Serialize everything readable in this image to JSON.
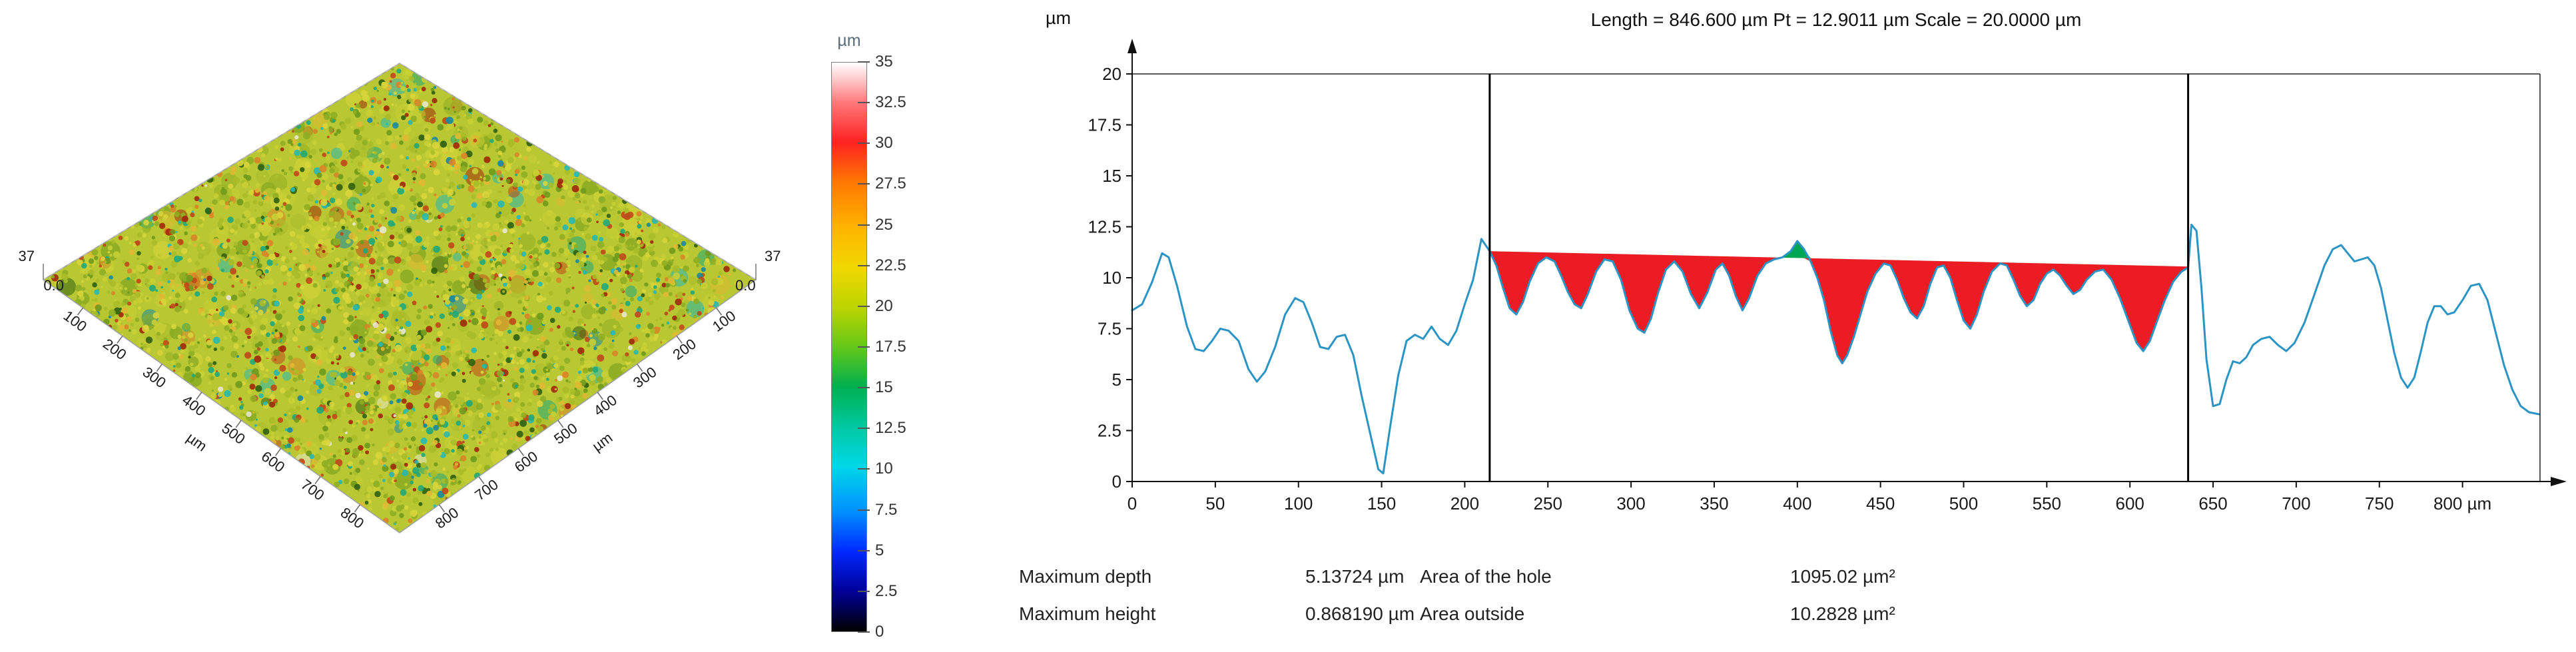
{
  "measurements": {
    "r1c1_label": "Maximum depth",
    "r1c1_value": "5.13724 µm",
    "r1c2_label": "Area of the hole",
    "r1c2_value": "1095.02 µm²",
    "r2c1_label": "Maximum height",
    "r2c1_value": "0.868190 µm",
    "r2c2_label": "Area outside",
    "r2c2_value": "10.2828 µm²"
  },
  "chart_data": [
    {
      "type": "heatmap",
      "name": "surface-3d-topography",
      "x_axis": {
        "unit": "µm",
        "tick_labels": [
          "100",
          "200",
          "300",
          "400",
          "500",
          "600",
          "700",
          "800"
        ]
      },
      "y_axis": {
        "unit": "µm",
        "tick_labels": [
          "100",
          "200",
          "300",
          "400",
          "500",
          "600",
          "700",
          "800"
        ]
      },
      "z_axis": {
        "unit": "µm",
        "max_label": "37",
        "min_label": "0.0"
      },
      "base_color": "#b9c832",
      "speckle_palette": [
        {
          "c": "#a8bc28",
          "w": 0.17
        },
        {
          "c": "#c9cf33",
          "w": 0.16
        },
        {
          "c": "#d9d53a",
          "w": 0.12
        },
        {
          "c": "#8fae22",
          "w": 0.12
        },
        {
          "c": "#6f9a1c",
          "w": 0.08
        },
        {
          "c": "#e0b832",
          "w": 0.06
        },
        {
          "c": "#d98428",
          "w": 0.05
        },
        {
          "c": "#c04818",
          "w": 0.05
        },
        {
          "c": "#a02808",
          "w": 0.04
        },
        {
          "c": "#20a87a",
          "w": 0.05
        },
        {
          "c": "#28b8b0",
          "w": 0.04
        },
        {
          "c": "#1888a0",
          "w": 0.02
        },
        {
          "c": "#306010",
          "w": 0.03
        },
        {
          "c": "#e8e8d0",
          "w": 0.01
        }
      ],
      "colormap": {
        "unit": "µm",
        "tick_labels": [
          "35",
          "32.5",
          "30",
          "27.5",
          "25",
          "22.5",
          "20",
          "17.5",
          "15",
          "12.5",
          "10",
          "7.5",
          "5",
          "2.5",
          "0"
        ],
        "stops": [
          {
            "pos": 0,
            "color": "#ffffff"
          },
          {
            "pos": 3,
            "color": "#ffc8c8"
          },
          {
            "pos": 7,
            "color": "#ff7878"
          },
          {
            "pos": 14,
            "color": "#ff2222"
          },
          {
            "pos": 21,
            "color": "#ff7800"
          },
          {
            "pos": 29,
            "color": "#ffb400"
          },
          {
            "pos": 36,
            "color": "#f0d800"
          },
          {
            "pos": 43,
            "color": "#bcd400"
          },
          {
            "pos": 50,
            "color": "#64c818"
          },
          {
            "pos": 57,
            "color": "#00b050"
          },
          {
            "pos": 64,
            "color": "#00c8a0"
          },
          {
            "pos": 71,
            "color": "#00d8e8"
          },
          {
            "pos": 79,
            "color": "#0090ff"
          },
          {
            "pos": 86,
            "color": "#0028ff"
          },
          {
            "pos": 93,
            "color": "#000098"
          },
          {
            "pos": 100,
            "color": "#000000"
          }
        ]
      }
    },
    {
      "type": "line",
      "name": "extracted-profile",
      "title": "Length = 846.600 µm  Pt = 12.9011 µm  Scale = 20.0000 µm",
      "y_unit": "µm",
      "ylim": [
        0,
        20
      ],
      "xlim": [
        0,
        860
      ],
      "profile_end_x": 846.6,
      "y_tick_labels": [
        "0",
        "2.5",
        "5",
        "7.5",
        "10",
        "12.5",
        "15",
        "17.5",
        "20"
      ],
      "x_tick_labels": [
        "0",
        "50",
        "100",
        "150",
        "200",
        "250",
        "300",
        "350",
        "400",
        "450",
        "500",
        "550",
        "600",
        "650",
        "700",
        "750",
        "800 µm"
      ],
      "line_color": "#2a94c5",
      "hole_fill": "#ec1c24",
      "peak_fill": "#00a651",
      "cursor_color": "#000000",
      "cursors": [
        215,
        635
      ],
      "hole": {
        "x": [
          215,
          635
        ],
        "y": [
          11.3,
          10.55
        ]
      },
      "points": [
        [
          0,
          8.4
        ],
        [
          6,
          8.7
        ],
        [
          12,
          9.8
        ],
        [
          18,
          11.2
        ],
        [
          22,
          11.0
        ],
        [
          27,
          9.6
        ],
        [
          33,
          7.6
        ],
        [
          38,
          6.5
        ],
        [
          43,
          6.4
        ],
        [
          48,
          6.9
        ],
        [
          53,
          7.5
        ],
        [
          58,
          7.4
        ],
        [
          64,
          6.9
        ],
        [
          70,
          5.5
        ],
        [
          75,
          4.9
        ],
        [
          80,
          5.4
        ],
        [
          86,
          6.6
        ],
        [
          92,
          8.2
        ],
        [
          98,
          9.0
        ],
        [
          103,
          8.8
        ],
        [
          108,
          7.8
        ],
        [
          113,
          6.6
        ],
        [
          118,
          6.5
        ],
        [
          123,
          7.1
        ],
        [
          128,
          7.2
        ],
        [
          133,
          6.2
        ],
        [
          138,
          4.2
        ],
        [
          143,
          2.4
        ],
        [
          148,
          0.6
        ],
        [
          151,
          0.4
        ],
        [
          155,
          2.6
        ],
        [
          160,
          5.2
        ],
        [
          165,
          6.9
        ],
        [
          170,
          7.2
        ],
        [
          175,
          7.0
        ],
        [
          180,
          7.6
        ],
        [
          185,
          7.0
        ],
        [
          190,
          6.7
        ],
        [
          195,
          7.4
        ],
        [
          200,
          8.7
        ],
        [
          205,
          9.9
        ],
        [
          210,
          11.9
        ],
        [
          215,
          11.3
        ],
        [
          219,
          10.6
        ],
        [
          223,
          9.5
        ],
        [
          227,
          8.5
        ],
        [
          231,
          8.2
        ],
        [
          235,
          8.8
        ],
        [
          239,
          9.8
        ],
        [
          244,
          10.7
        ],
        [
          249,
          11.0
        ],
        [
          254,
          10.8
        ],
        [
          258,
          10.1
        ],
        [
          262,
          9.3
        ],
        [
          266,
          8.7
        ],
        [
          270,
          8.5
        ],
        [
          274,
          9.2
        ],
        [
          279,
          10.3
        ],
        [
          284,
          10.9
        ],
        [
          289,
          10.8
        ],
        [
          294,
          9.9
        ],
        [
          299,
          8.4
        ],
        [
          304,
          7.5
        ],
        [
          308,
          7.3
        ],
        [
          312,
          8.0
        ],
        [
          316,
          9.2
        ],
        [
          321,
          10.4
        ],
        [
          326,
          10.8
        ],
        [
          331,
          10.3
        ],
        [
          336,
          9.2
        ],
        [
          341,
          8.5
        ],
        [
          346,
          9.3
        ],
        [
          351,
          10.4
        ],
        [
          355,
          10.7
        ],
        [
          359,
          10.1
        ],
        [
          363,
          9.1
        ],
        [
          367,
          8.4
        ],
        [
          371,
          9.0
        ],
        [
          376,
          10.1
        ],
        [
          381,
          10.7
        ],
        [
          386,
          10.9
        ],
        [
          391,
          11.0
        ],
        [
          396,
          11.3
        ],
        [
          400,
          11.8
        ],
        [
          404,
          11.4
        ],
        [
          408,
          10.8
        ],
        [
          412,
          10.0
        ],
        [
          416,
          8.9
        ],
        [
          420,
          7.4
        ],
        [
          424,
          6.2
        ],
        [
          427,
          5.8
        ],
        [
          430,
          6.2
        ],
        [
          434,
          7.1
        ],
        [
          438,
          8.2
        ],
        [
          442,
          9.3
        ],
        [
          447,
          10.2
        ],
        [
          452,
          10.7
        ],
        [
          456,
          10.6
        ],
        [
          460,
          9.9
        ],
        [
          464,
          9.0
        ],
        [
          468,
          8.3
        ],
        [
          472,
          8.0
        ],
        [
          476,
          8.6
        ],
        [
          480,
          9.7
        ],
        [
          484,
          10.5
        ],
        [
          488,
          10.6
        ],
        [
          492,
          10.0
        ],
        [
          496,
          8.9
        ],
        [
          500,
          7.9
        ],
        [
          504,
          7.5
        ],
        [
          508,
          8.2
        ],
        [
          512,
          9.3
        ],
        [
          517,
          10.3
        ],
        [
          522,
          10.7
        ],
        [
          526,
          10.6
        ],
        [
          530,
          9.9
        ],
        [
          534,
          9.1
        ],
        [
          538,
          8.6
        ],
        [
          542,
          8.9
        ],
        [
          546,
          9.7
        ],
        [
          550,
          10.2
        ],
        [
          554,
          10.4
        ],
        [
          558,
          10.1
        ],
        [
          562,
          9.6
        ],
        [
          566,
          9.2
        ],
        [
          570,
          9.4
        ],
        [
          574,
          9.9
        ],
        [
          579,
          10.3
        ],
        [
          584,
          10.4
        ],
        [
          589,
          9.9
        ],
        [
          594,
          9.0
        ],
        [
          599,
          7.9
        ],
        [
          604,
          6.8
        ],
        [
          608,
          6.4
        ],
        [
          612,
          6.9
        ],
        [
          616,
          7.8
        ],
        [
          621,
          8.9
        ],
        [
          626,
          9.8
        ],
        [
          631,
          10.3
        ],
        [
          635,
          10.5
        ],
        [
          637,
          12.6
        ],
        [
          640,
          12.3
        ],
        [
          643,
          9.5
        ],
        [
          646,
          6.0
        ],
        [
          650,
          3.7
        ],
        [
          654,
          3.8
        ],
        [
          658,
          5.0
        ],
        [
          662,
          5.9
        ],
        [
          666,
          5.8
        ],
        [
          670,
          6.1
        ],
        [
          674,
          6.7
        ],
        [
          679,
          7.0
        ],
        [
          684,
          7.1
        ],
        [
          689,
          6.7
        ],
        [
          694,
          6.4
        ],
        [
          699,
          6.8
        ],
        [
          705,
          7.8
        ],
        [
          711,
          9.2
        ],
        [
          717,
          10.6
        ],
        [
          722,
          11.4
        ],
        [
          727,
          11.6
        ],
        [
          731,
          11.2
        ],
        [
          735,
          10.8
        ],
        [
          739,
          10.9
        ],
        [
          743,
          11.0
        ],
        [
          747,
          10.6
        ],
        [
          751,
          9.5
        ],
        [
          755,
          7.9
        ],
        [
          759,
          6.3
        ],
        [
          763,
          5.1
        ],
        [
          767,
          4.6
        ],
        [
          771,
          5.1
        ],
        [
          775,
          6.4
        ],
        [
          779,
          7.8
        ],
        [
          783,
          8.6
        ],
        [
          787,
          8.6
        ],
        [
          791,
          8.2
        ],
        [
          795,
          8.3
        ],
        [
          800,
          8.9
        ],
        [
          805,
          9.6
        ],
        [
          810,
          9.7
        ],
        [
          815,
          8.9
        ],
        [
          820,
          7.3
        ],
        [
          825,
          5.7
        ],
        [
          830,
          4.5
        ],
        [
          835,
          3.7
        ],
        [
          840,
          3.4
        ],
        [
          846,
          3.3
        ]
      ]
    }
  ]
}
